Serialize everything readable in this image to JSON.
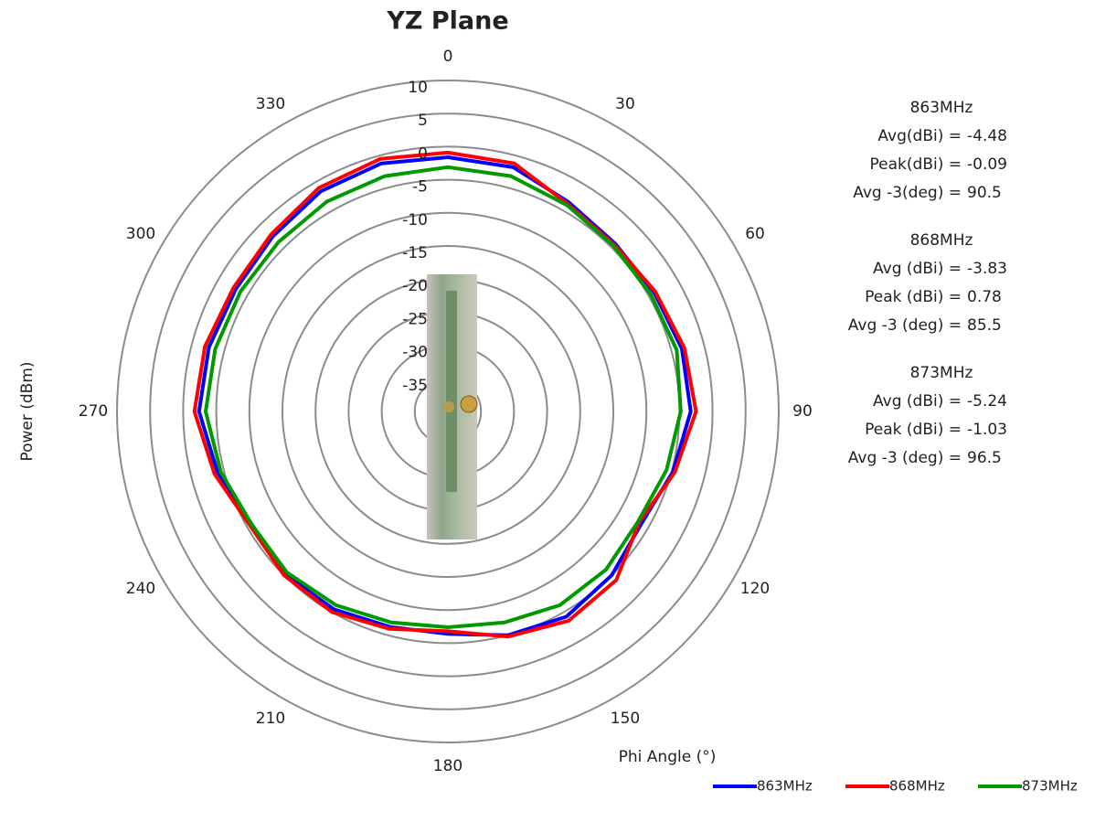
{
  "chart_data": {
    "type": "polar",
    "title": "YZ Plane",
    "y_label": "Power (dBm)",
    "x_label": "Phi Angle (°)",
    "theta": [
      0,
      15,
      30,
      45,
      60,
      75,
      90,
      105,
      120,
      135,
      150,
      165,
      180,
      195,
      210,
      225,
      240,
      255,
      270,
      285,
      300,
      315,
      330,
      345
    ],
    "thetaticks": [
      0,
      30,
      60,
      90,
      120,
      150,
      180,
      210,
      240,
      270,
      300,
      330
    ],
    "rlim": [
      -40,
      10
    ],
    "rticks": [
      -35,
      -30,
      -25,
      -20,
      -15,
      -10,
      -5,
      0,
      5,
      10
    ],
    "grid": true,
    "legend": "bottom-right",
    "series": [
      {
        "name": "863MHz",
        "color": "#0000ff",
        "values": [
          -1.6,
          -1.8,
          -3.5,
          -4.2,
          -4.0,
          -3.4,
          -3.3,
          -4.8,
          -6.2,
          -5.0,
          -4.2,
          -5.0,
          -6.4,
          -6.3,
          -5.5,
          -5.2,
          -5.8,
          -4.0,
          -2.4,
          -2.6,
          -3.0,
          -2.6,
          -1.6,
          -1.2
        ]
      },
      {
        "name": "868MHz",
        "color": "#ff0000",
        "values": [
          -0.9,
          -1.2,
          -3.8,
          -4.4,
          -3.8,
          -3.0,
          -2.5,
          -4.5,
          -6.6,
          -4.0,
          -3.5,
          -4.8,
          -6.8,
          -6.0,
          -5.0,
          -5.0,
          -5.5,
          -3.5,
          -1.7,
          -2.0,
          -2.6,
          -2.2,
          -1.0,
          -0.5
        ]
      },
      {
        "name": "873MHz",
        "color": "#009900",
        "values": [
          -3.1,
          -3.2,
          -4.0,
          -4.6,
          -4.6,
          -4.2,
          -4.8,
          -5.8,
          -6.8,
          -6.2,
          -6.2,
          -7.0,
          -7.4,
          -7.0,
          -6.2,
          -5.6,
          -5.8,
          -4.5,
          -3.4,
          -3.6,
          -3.8,
          -3.8,
          -3.4,
          -3.2
        ]
      }
    ],
    "annotations": [
      {
        "heading": "863MHz",
        "rows": [
          {
            "label": "Avg(dBi) =",
            "value": -4.48
          },
          {
            "label": "Peak(dBi) =",
            "value": -0.09
          },
          {
            "label": "Avg -3(deg) =",
            "value": 90.5
          }
        ]
      },
      {
        "heading": "868MHz",
        "rows": [
          {
            "label": "Avg (dBi) =",
            "value": -3.83
          },
          {
            "label": "Peak (dBi) =",
            "value": 0.78
          },
          {
            "label": "Avg -3 (deg) =",
            "value": 85.5
          }
        ]
      },
      {
        "heading": "873MHz",
        "rows": [
          {
            "label": "Avg (dBi) =",
            "value": -5.24
          },
          {
            "label": "Peak (dBi) =",
            "value": -1.03
          },
          {
            "label": "Avg -3 (deg) =",
            "value": 96.5
          }
        ]
      }
    ]
  }
}
